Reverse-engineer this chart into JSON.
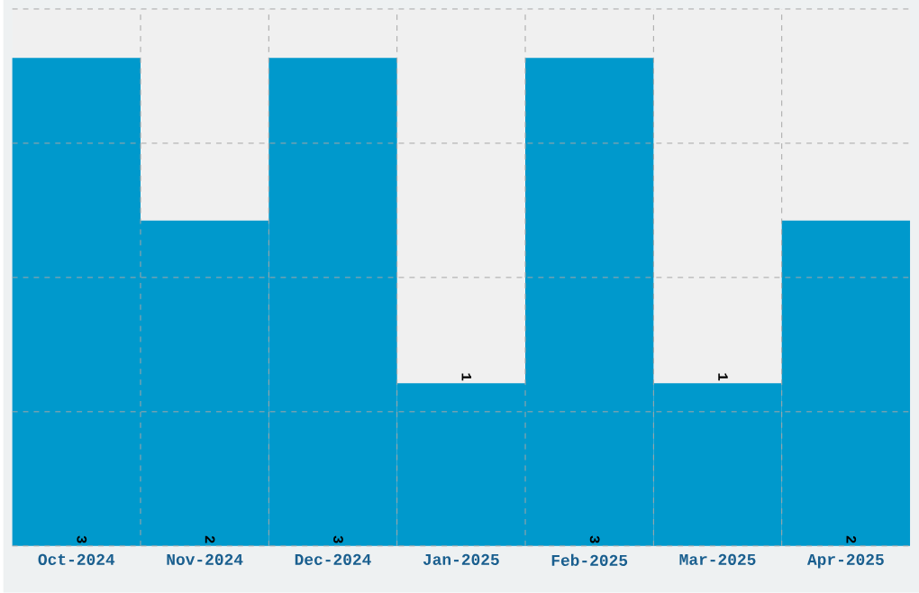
{
  "chart_data": {
    "type": "bar",
    "categories": [
      "Oct-2024",
      "Nov-2024",
      "Dec-2024",
      "Jan-2025",
      "Feb-2025",
      "Mar-2025",
      "Apr-2025"
    ],
    "values": [
      3,
      2,
      3,
      1,
      3,
      1,
      2
    ],
    "color": "#0099cc",
    "ylim": [
      0,
      3.3
    ],
    "yticks": [
      {
        "value": 0,
        "label": null
      },
      {
        "value": 0.825,
        "label": null
      },
      {
        "value": 1.65,
        "label": null
      },
      {
        "value": 2.475,
        "label": null
      },
      {
        "value": 3.3,
        "label": null
      }
    ],
    "tick_labels": "x",
    "grid": true,
    "data_labels": true
  }
}
